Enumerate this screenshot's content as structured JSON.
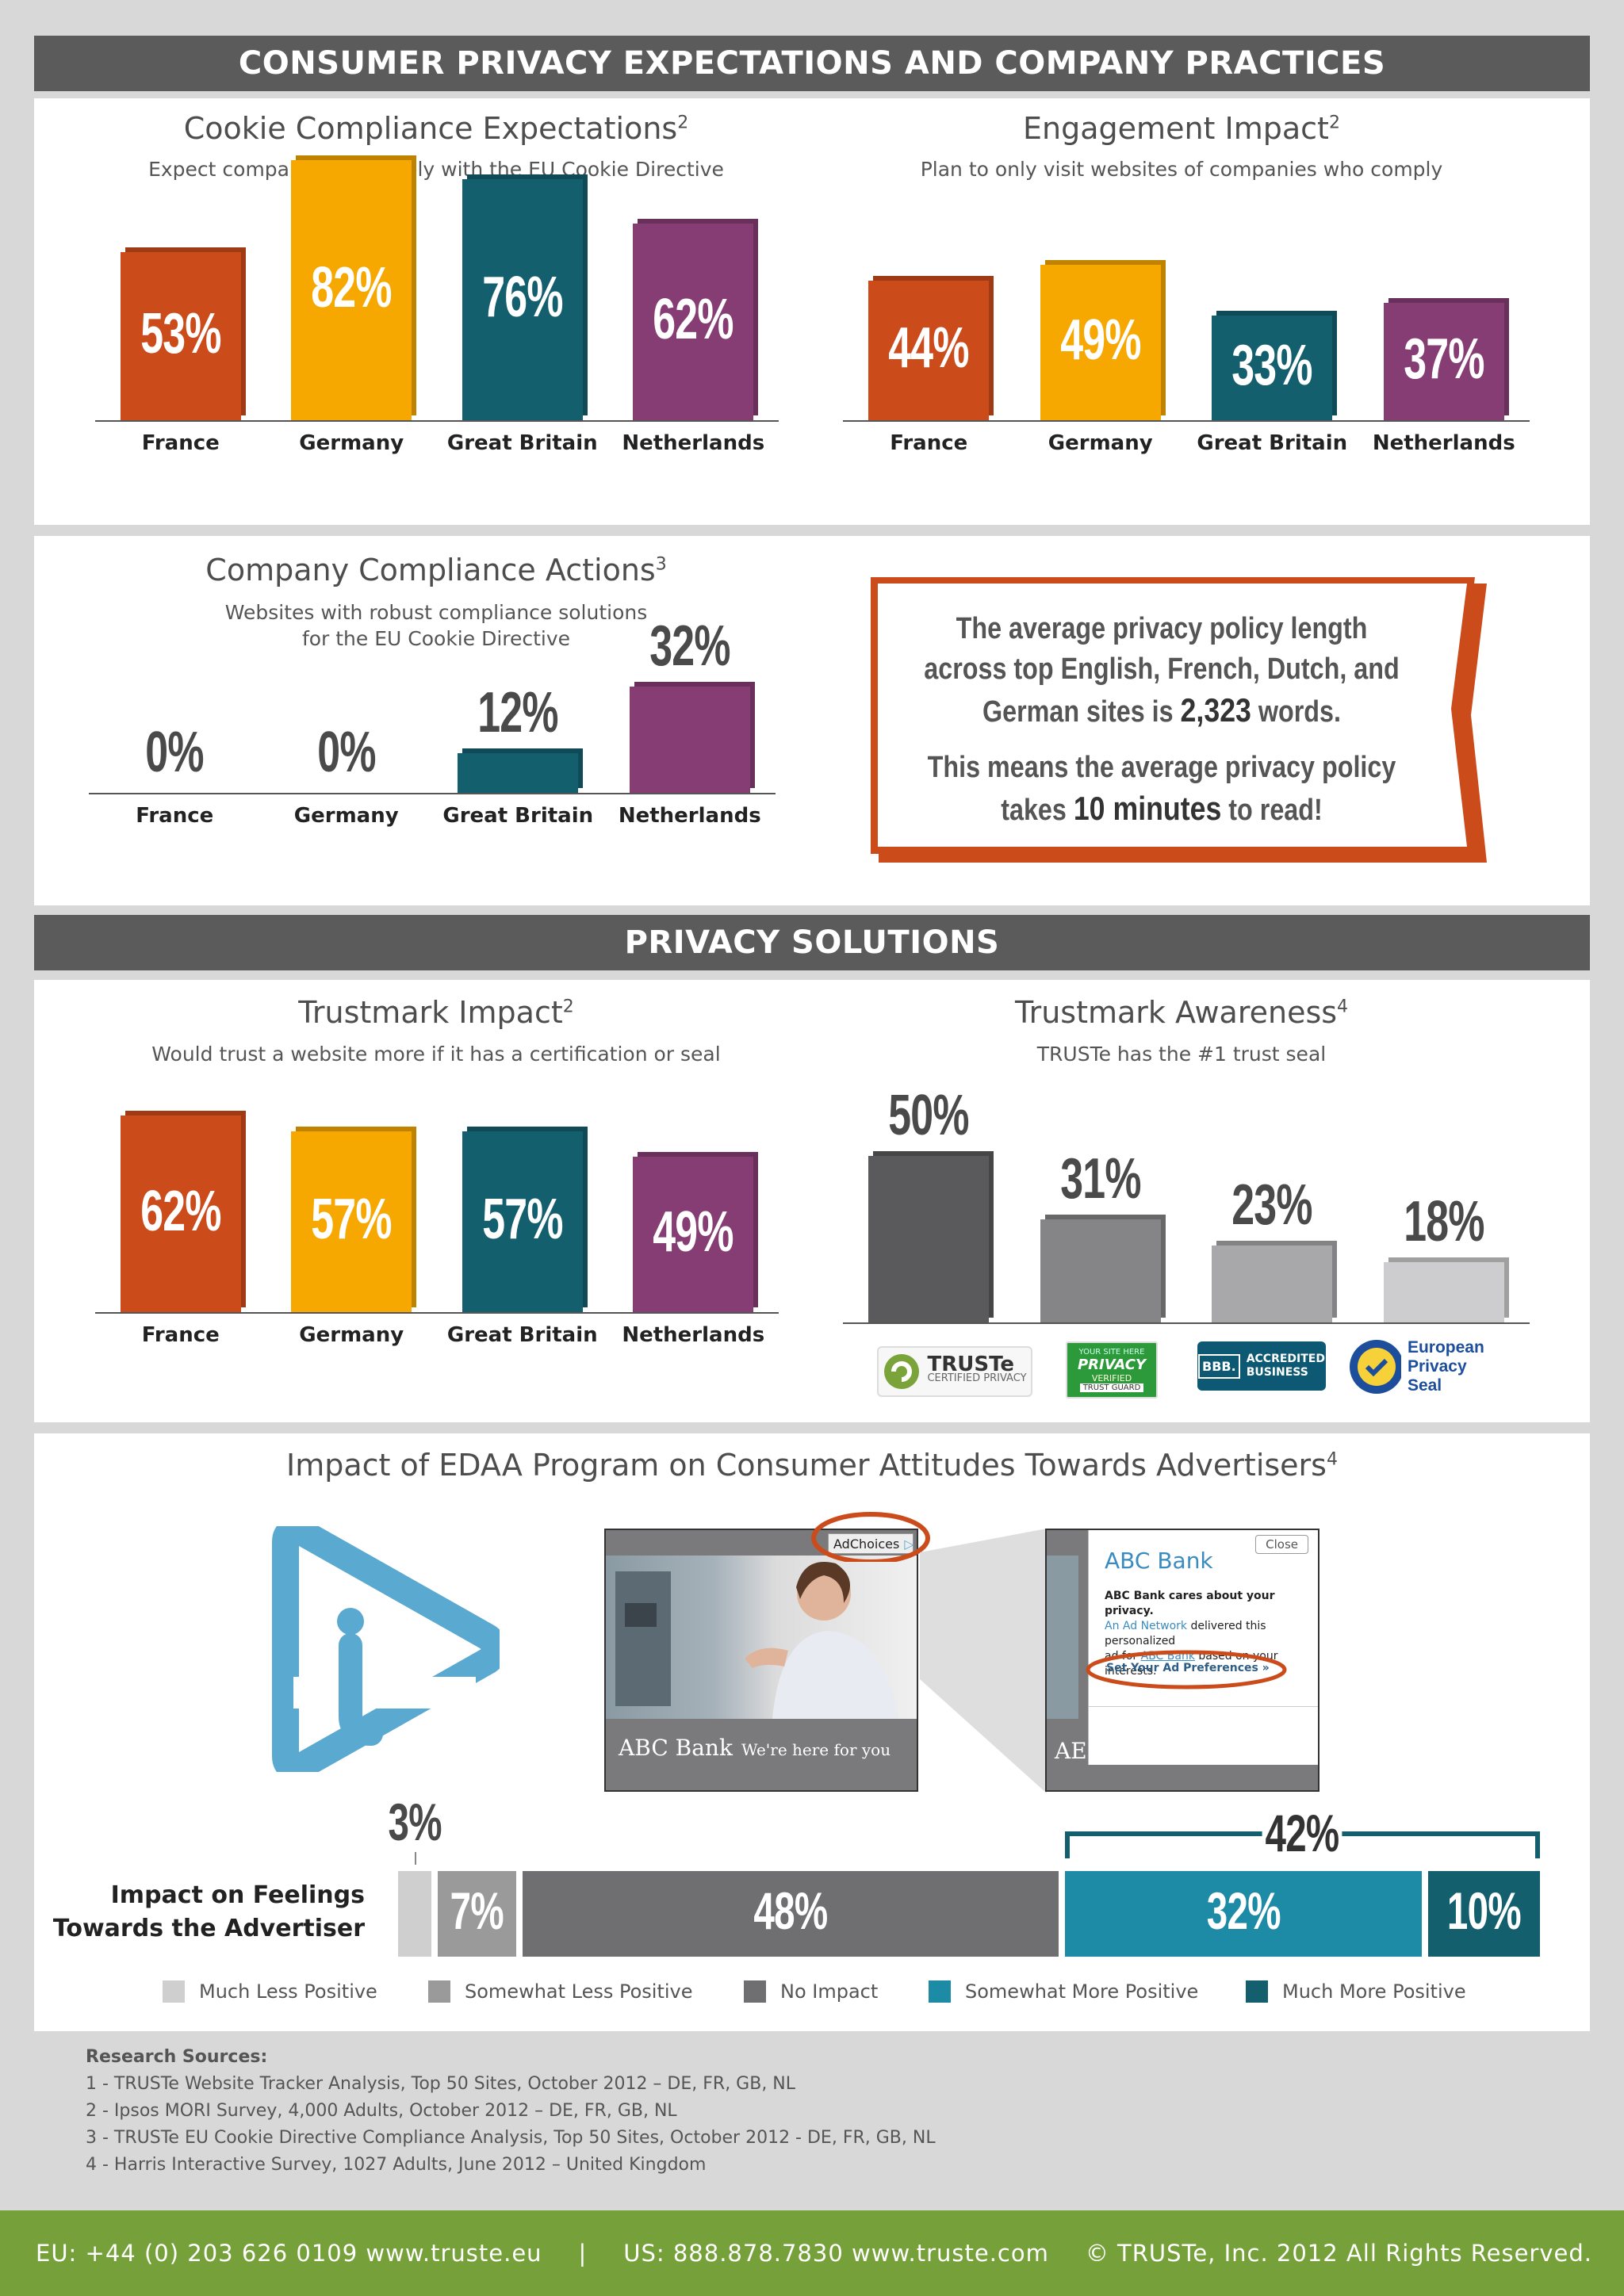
{
  "banners": {
    "top": "CONSUMER PRIVACY EXPECTATIONS AND COMPANY PRACTICES",
    "solutions": "PRIVACY SOLUTIONS"
  },
  "colors": {
    "france": "#cb4b1a",
    "germany": "#f6a800",
    "great_britain": "#135f6e",
    "netherlands": "#853d74",
    "accent_orange": "#cb4b1a",
    "footer_green": "#76a13a"
  },
  "chart_data": [
    {
      "id": "cookie",
      "type": "bar",
      "title": "Cookie Compliance Expectations",
      "title_sup": "2",
      "subtitle": "Expect companies to comply with the EU Cookie Directive",
      "categories": [
        "France",
        "Germany",
        "Great Britain",
        "Netherlands"
      ],
      "values": [
        53,
        82,
        76,
        62
      ],
      "labels": [
        "53%",
        "82%",
        "76%",
        "62%"
      ],
      "ylim": [
        0,
        100
      ]
    },
    {
      "id": "engagement",
      "type": "bar",
      "title": "Engagement Impact",
      "title_sup": "2",
      "subtitle": "Plan to only visit websites of companies who comply",
      "categories": [
        "France",
        "Germany",
        "Great Britain",
        "Netherlands"
      ],
      "values": [
        44,
        49,
        33,
        37
      ],
      "labels": [
        "44%",
        "49%",
        "33%",
        "37%"
      ],
      "ylim": [
        0,
        100
      ]
    },
    {
      "id": "compliance",
      "type": "bar",
      "title": "Company Compliance Actions",
      "title_sup": "3",
      "subtitle_lines": [
        "Websites with robust compliance solutions",
        "for the EU Cookie Directive"
      ],
      "categories": [
        "France",
        "Germany",
        "Great Britain",
        "Netherlands"
      ],
      "values": [
        0,
        0,
        12,
        32
      ],
      "labels": [
        "0%",
        "0%",
        "12%",
        "32%"
      ],
      "ylim": [
        0,
        100
      ]
    },
    {
      "id": "trustmark_impact",
      "type": "bar",
      "title": "Trustmark Impact",
      "title_sup": "2",
      "subtitle": "Would trust a website more if it has a certification or seal",
      "categories": [
        "France",
        "Germany",
        "Great Britain",
        "Netherlands"
      ],
      "values": [
        62,
        57,
        57,
        49
      ],
      "labels": [
        "62%",
        "57%",
        "57%",
        "49%"
      ],
      "ylim": [
        0,
        100
      ]
    },
    {
      "id": "trustmark_awareness",
      "type": "bar",
      "title": "Trustmark Awareness",
      "title_sup": "4",
      "subtitle": "TRUSTe has the #1 trust seal",
      "categories": [
        "TRUSTe",
        "Privacy Verified",
        "BBB Accredited Business",
        "European Privacy Seal"
      ],
      "values": [
        50,
        31,
        23,
        18
      ],
      "labels": [
        "50%",
        "31%",
        "23%",
        "18%"
      ],
      "ylim": [
        0,
        100
      ]
    },
    {
      "id": "edaa",
      "type": "bar",
      "orientation": "stacked-horizontal",
      "title": "Impact of EDAA Program on Consumer Attitudes Towards Advertisers",
      "title_sup": "4",
      "row_label_lines": [
        "Impact on Feelings",
        "Towards the Advertiser"
      ],
      "series": [
        {
          "name": "Much Less Positive",
          "value": 3,
          "label": "3%",
          "color": "#cfcfcf"
        },
        {
          "name": "Somewhat Less Positive",
          "value": 7,
          "label": "7%",
          "color": "#9a9a9a"
        },
        {
          "name": "No Impact",
          "value": 48,
          "label": "48%",
          "color": "#6f6f71"
        },
        {
          "name": "Somewhat More Positive",
          "value": 32,
          "label": "32%",
          "color": "#1d8aa6"
        },
        {
          "name": "Much More Positive",
          "value": 10,
          "label": "10%",
          "color": "#135f6e"
        }
      ],
      "bracket_label": "42%"
    }
  ],
  "callout": {
    "line1": "The average privacy policy length",
    "line2": "across top English, French, Dutch, and",
    "line3_pre": "German sites is ",
    "line3_bold": "2,323",
    "line3_post": " words.",
    "line4": "This means the average privacy policy",
    "line5_pre": "takes ",
    "line5_bold": "10 minutes",
    "line5_post": " to read!"
  },
  "logos": {
    "truste": "TRUSTe",
    "truste_sub": "CERTIFIED PRIVACY",
    "pv_top": "YOUR SITE HERE",
    "pv_main": "PRIVACY",
    "pv_verified": "VERIFIED",
    "pv_guard": "TRUST GUARD",
    "bbb_line1": "ACCREDITED",
    "bbb_line2": "BUSINESS",
    "bbb_mark": "BBB.",
    "eps_line1": "European",
    "eps_line2": "Privacy Seal"
  },
  "ad": {
    "adchoices": "AdChoices",
    "bank_name": "ABC Bank",
    "tagline": "We're here for you",
    "popup_title": "ABC Bank",
    "close": "Close",
    "popup_line1": "ABC Bank cares about your privacy.",
    "popup_link1": "An Ad Network",
    "popup_line2": " delivered this personalized",
    "popup_line3a": "ad for ",
    "popup_link2": "ABC Bank",
    "popup_line3b": " based on your interests.",
    "popup_cta": "Set Your Ad Preferences »",
    "cut_text": "AE"
  },
  "sources": {
    "heading": "Research Sources:",
    "items": [
      "1  -  TRUSTe Website Tracker Analysis, Top 50 Sites, October 2012 – DE, FR, GB, NL",
      "2  -  Ipsos MORI Survey, 4,000 Adults, October 2012 – DE, FR, GB, NL",
      "3  -  TRUSTe EU Cookie Directive Compliance Analysis, Top 50 Sites, October 2012 - DE, FR, GB, NL",
      "4  -  Harris Interactive Survey, 1027 Adults, June 2012 – United Kingdom"
    ]
  },
  "footer": {
    "eu": "EU: +44 (0) 203 626 0109   www.truste.eu",
    "sep": "|",
    "us": "US: 888.878.7830   www.truste.com",
    "copyright": "© TRUSTe, Inc. 2012 All Rights Reserved."
  }
}
